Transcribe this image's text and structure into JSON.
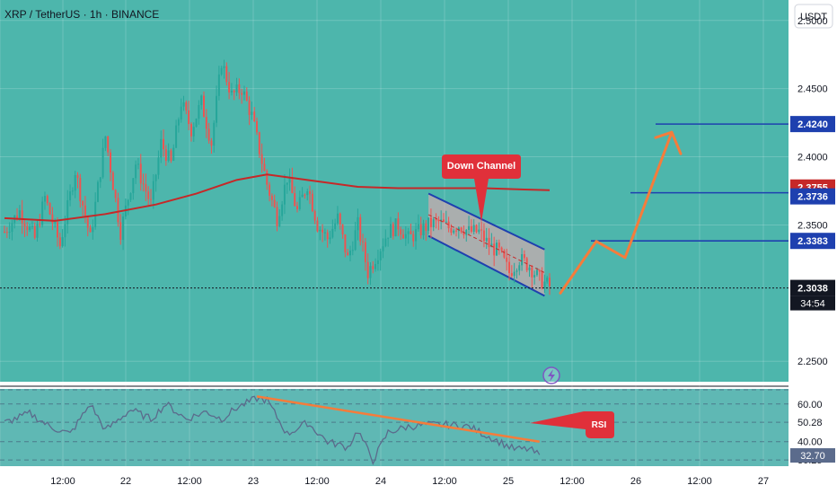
{
  "header": {
    "title": "XRP / TetherUS · 1h · BINANCE",
    "currency_button": "USDT"
  },
  "price_axis": {
    "ticks": [
      "2.5000",
      "2.4500",
      "2.4000",
      "2.3500",
      "2.2500"
    ],
    "tick_values": [
      2.5,
      2.45,
      2.4,
      2.35,
      2.25
    ]
  },
  "price_labels": [
    {
      "text": "2.4240",
      "value": 2.424,
      "color": "#1e40af"
    },
    {
      "text": "2.3755",
      "value": 2.3755,
      "color": "#c62828"
    },
    {
      "text": "2.3736",
      "value": 2.3736,
      "color": "#1e40af"
    },
    {
      "text": "2.3383",
      "value": 2.3383,
      "color": "#1e40af"
    },
    {
      "text": "2.3038",
      "value": 2.3038,
      "color": "#131722"
    }
  ],
  "countdown": "34:54",
  "rsi_axis": {
    "ticks": [
      "60.00",
      "50.28",
      "40.00",
      "30.25"
    ],
    "current": "32.70"
  },
  "time_axis": {
    "labels": [
      "12:00",
      "22",
      "12:00",
      "23",
      "12:00",
      "24",
      "12:00",
      "25",
      "12:00",
      "26",
      "12:00",
      "27"
    ]
  },
  "annotations": {
    "channel_label": "Down Channel",
    "rsi_label": "RSI"
  },
  "colors": {
    "up": "#26a69a",
    "down": "#ef5350",
    "ma": "#c62828",
    "level": "#1e40af",
    "projection": "#f57c3b",
    "price_bg": "#4db6ac",
    "rsi_bg": "#5fb8b4",
    "label_red": "#e0303a"
  },
  "chart_data": {
    "type": "candlestick",
    "symbol": "XRP / TetherUS",
    "interval": "1h",
    "exchange": "BINANCE",
    "ylim": [
      2.235,
      2.515
    ],
    "last_price": 2.3038,
    "horizontal_levels": [
      2.424,
      2.3736,
      2.3383
    ],
    "moving_average_last": 2.3755,
    "price_path": [
      [
        0,
        2.345
      ],
      [
        6,
        2.36
      ],
      [
        12,
        2.34
      ],
      [
        16,
        2.37
      ],
      [
        22,
        2.335
      ],
      [
        28,
        2.39
      ],
      [
        34,
        2.34
      ],
      [
        40,
        2.415
      ],
      [
        46,
        2.345
      ],
      [
        52,
        2.395
      ],
      [
        58,
        2.365
      ],
      [
        62,
        2.41
      ],
      [
        66,
        2.395
      ],
      [
        70,
        2.44
      ],
      [
        74,
        2.42
      ],
      [
        78,
        2.44
      ],
      [
        82,
        2.41
      ],
      [
        86,
        2.47
      ],
      [
        90,
        2.445
      ],
      [
        94,
        2.45
      ],
      [
        98,
        2.43
      ],
      [
        104,
        2.38
      ],
      [
        108,
        2.355
      ],
      [
        112,
        2.385
      ],
      [
        116,
        2.36
      ],
      [
        120,
        2.38
      ],
      [
        124,
        2.35
      ],
      [
        128,
        2.34
      ],
      [
        132,
        2.355
      ],
      [
        136,
        2.325
      ],
      [
        140,
        2.35
      ],
      [
        144,
        2.315
      ],
      [
        148,
        2.33
      ],
      [
        152,
        2.345
      ],
      [
        156,
        2.35
      ],
      [
        160,
        2.34
      ],
      [
        164,
        2.345
      ],
      [
        168,
        2.35
      ],
      [
        172,
        2.352
      ],
      [
        176,
        2.348
      ],
      [
        180,
        2.35
      ],
      [
        184,
        2.345
      ],
      [
        188,
        2.345
      ],
      [
        192,
        2.335
      ],
      [
        196,
        2.33
      ],
      [
        200,
        2.315
      ],
      [
        204,
        2.325
      ],
      [
        208,
        2.32
      ],
      [
        212,
        2.31
      ],
      [
        216,
        2.305
      ]
    ],
    "moving_average": [
      [
        0,
        2.355
      ],
      [
        20,
        2.353
      ],
      [
        40,
        2.358
      ],
      [
        60,
        2.365
      ],
      [
        76,
        2.373
      ],
      [
        92,
        2.383
      ],
      [
        104,
        2.387
      ],
      [
        120,
        2.383
      ],
      [
        140,
        2.378
      ],
      [
        156,
        2.377
      ],
      [
        172,
        2.377
      ],
      [
        190,
        2.377
      ],
      [
        206,
        2.376
      ],
      [
        216,
        2.3755
      ]
    ],
    "channel": {
      "upper": [
        [
          168,
          2.373
        ],
        [
          214,
          2.332
        ]
      ],
      "lower": [
        [
          168,
          2.342
        ],
        [
          214,
          2.298
        ]
      ]
    },
    "projection": [
      [
        216,
        2.3
      ],
      [
        226,
        2.338
      ],
      [
        234,
        2.326
      ],
      [
        246,
        2.418
      ],
      [
        250,
        2.4
      ]
    ],
    "rsi": {
      "ylim": [
        27,
        68
      ],
      "levels": [
        60,
        50.28,
        40,
        30.25
      ],
      "current": 32.7,
      "values": [
        [
          0,
          50
        ],
        [
          10,
          55
        ],
        [
          18,
          48
        ],
        [
          26,
          44
        ],
        [
          34,
          60
        ],
        [
          40,
          46
        ],
        [
          50,
          57
        ],
        [
          58,
          52
        ],
        [
          64,
          60
        ],
        [
          72,
          52
        ],
        [
          80,
          56
        ],
        [
          86,
          52
        ],
        [
          92,
          58
        ],
        [
          100,
          63
        ],
        [
          104,
          62
        ],
        [
          112,
          44
        ],
        [
          120,
          50
        ],
        [
          128,
          40
        ],
        [
          136,
          37
        ],
        [
          140,
          46
        ],
        [
          146,
          30
        ],
        [
          152,
          45
        ],
        [
          160,
          48
        ],
        [
          168,
          49
        ],
        [
          176,
          49
        ],
        [
          184,
          48
        ],
        [
          190,
          44
        ],
        [
          196,
          40
        ],
        [
          202,
          36
        ],
        [
          208,
          36
        ],
        [
          212,
          32.7
        ]
      ],
      "divergence_line": [
        [
          100,
          64
        ],
        [
          212,
          40
        ]
      ]
    }
  }
}
